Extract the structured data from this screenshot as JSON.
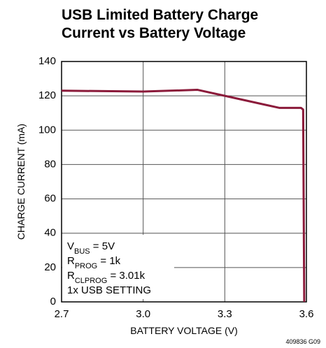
{
  "chart_data": {
    "type": "line",
    "title": [
      "USB Limited Battery Charge",
      "Current vs Battery Voltage"
    ],
    "xlabel": "BATTERY VOLTAGE (V)",
    "ylabel": "CHARGE CURRENT (mA)",
    "footnote": "409836 G09",
    "annotations": [
      [
        "V",
        "BUS",
        " = 5V"
      ],
      [
        "R",
        "PROG",
        " = 1k"
      ],
      [
        "R",
        "CLPROG",
        " = 3.01k"
      ],
      [
        "1x USB SETTING"
      ]
    ],
    "x": [
      2.7,
      3.0,
      3.2,
      3.3,
      3.5,
      3.58,
      3.588,
      3.592
    ],
    "series": [
      {
        "name": "charge current",
        "color": "#8b1a3a",
        "values": [
          123,
          122.5,
          123.5,
          120,
          113,
          113,
          112,
          0
        ]
      }
    ],
    "xlim": [
      2.7,
      3.6
    ],
    "xticks": [
      2.7,
      {
        "value": 3,
        "label": "3.0"
      },
      3.3,
      3.6
    ],
    "ylim": [
      0,
      140
    ],
    "yticks": [
      0,
      20,
      40,
      60,
      80,
      100,
      120,
      140
    ],
    "grid": true
  }
}
